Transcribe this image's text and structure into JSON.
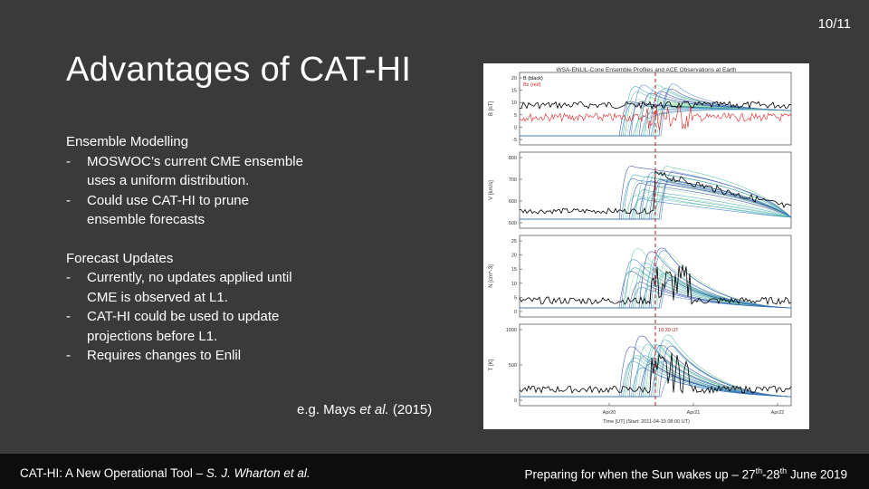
{
  "slide_number": "10/11",
  "title": "Advantages of CAT-HI",
  "section1": {
    "heading": "Ensemble Modelling",
    "bullets": [
      [
        "MOSWOC’s current CME ensemble",
        "uses a uniform distribution."
      ],
      [
        "Could use CAT-HI to prune",
        "ensemble forecasts"
      ]
    ]
  },
  "section2": {
    "heading": "Forecast Updates",
    "bullets": [
      [
        "Currently, no updates applied until",
        "CME is observed at L1."
      ],
      [
        "CAT-HI could be used to update",
        "projections before L1."
      ],
      [
        "Requires changes to Enlil"
      ]
    ]
  },
  "bullet_marker": "-",
  "citation": {
    "prefix": "e.g. Mays ",
    "italic": "et al.",
    "suffix": " (2015)"
  },
  "figure": {
    "title": "WSA-ENLIL-Cone Ensemble Profiles and ACE Observations at Earth",
    "legend": [
      "B (black)",
      "Bz (red)"
    ],
    "panels": [
      {
        "ylabel": "B [nT]",
        "ticks": [
          "20",
          "15",
          "10",
          "5",
          "0",
          "-5"
        ]
      },
      {
        "ylabel": "V [km/s]",
        "ticks": [
          "800",
          "700",
          "600",
          "500"
        ]
      },
      {
        "ylabel": "N [cm^-3]",
        "ticks": [
          "25",
          "20",
          "15",
          "10",
          "5",
          "0"
        ]
      },
      {
        "ylabel": "T [K]",
        "ticks": [
          "1000",
          "500",
          "0"
        ]
      }
    ],
    "time_marker": "10:30 UT",
    "xticks": [
      "Apr20",
      "Apr21",
      "Apr22"
    ],
    "xlabel": "Time [UT] (Start: 2011-04-19 08:00 UT)",
    "colors": {
      "observed": "#000000",
      "bz": "#e02020",
      "marker": "#b22222",
      "ensemble": [
        "#2a3c9c",
        "#3a78c8",
        "#3aa6b8",
        "#4cbf9a",
        "#9fdcb0"
      ]
    }
  },
  "footer": {
    "left_prefix": "CAT-HI: A New Operational Tool – ",
    "left_italic": "S. J. Wharton et al.",
    "right_prefix": "Preparing for when the Sun wakes up – 27",
    "right_sup1": "th",
    "right_mid": "-28",
    "right_sup2": "th",
    "right_suffix": " June 2019"
  }
}
